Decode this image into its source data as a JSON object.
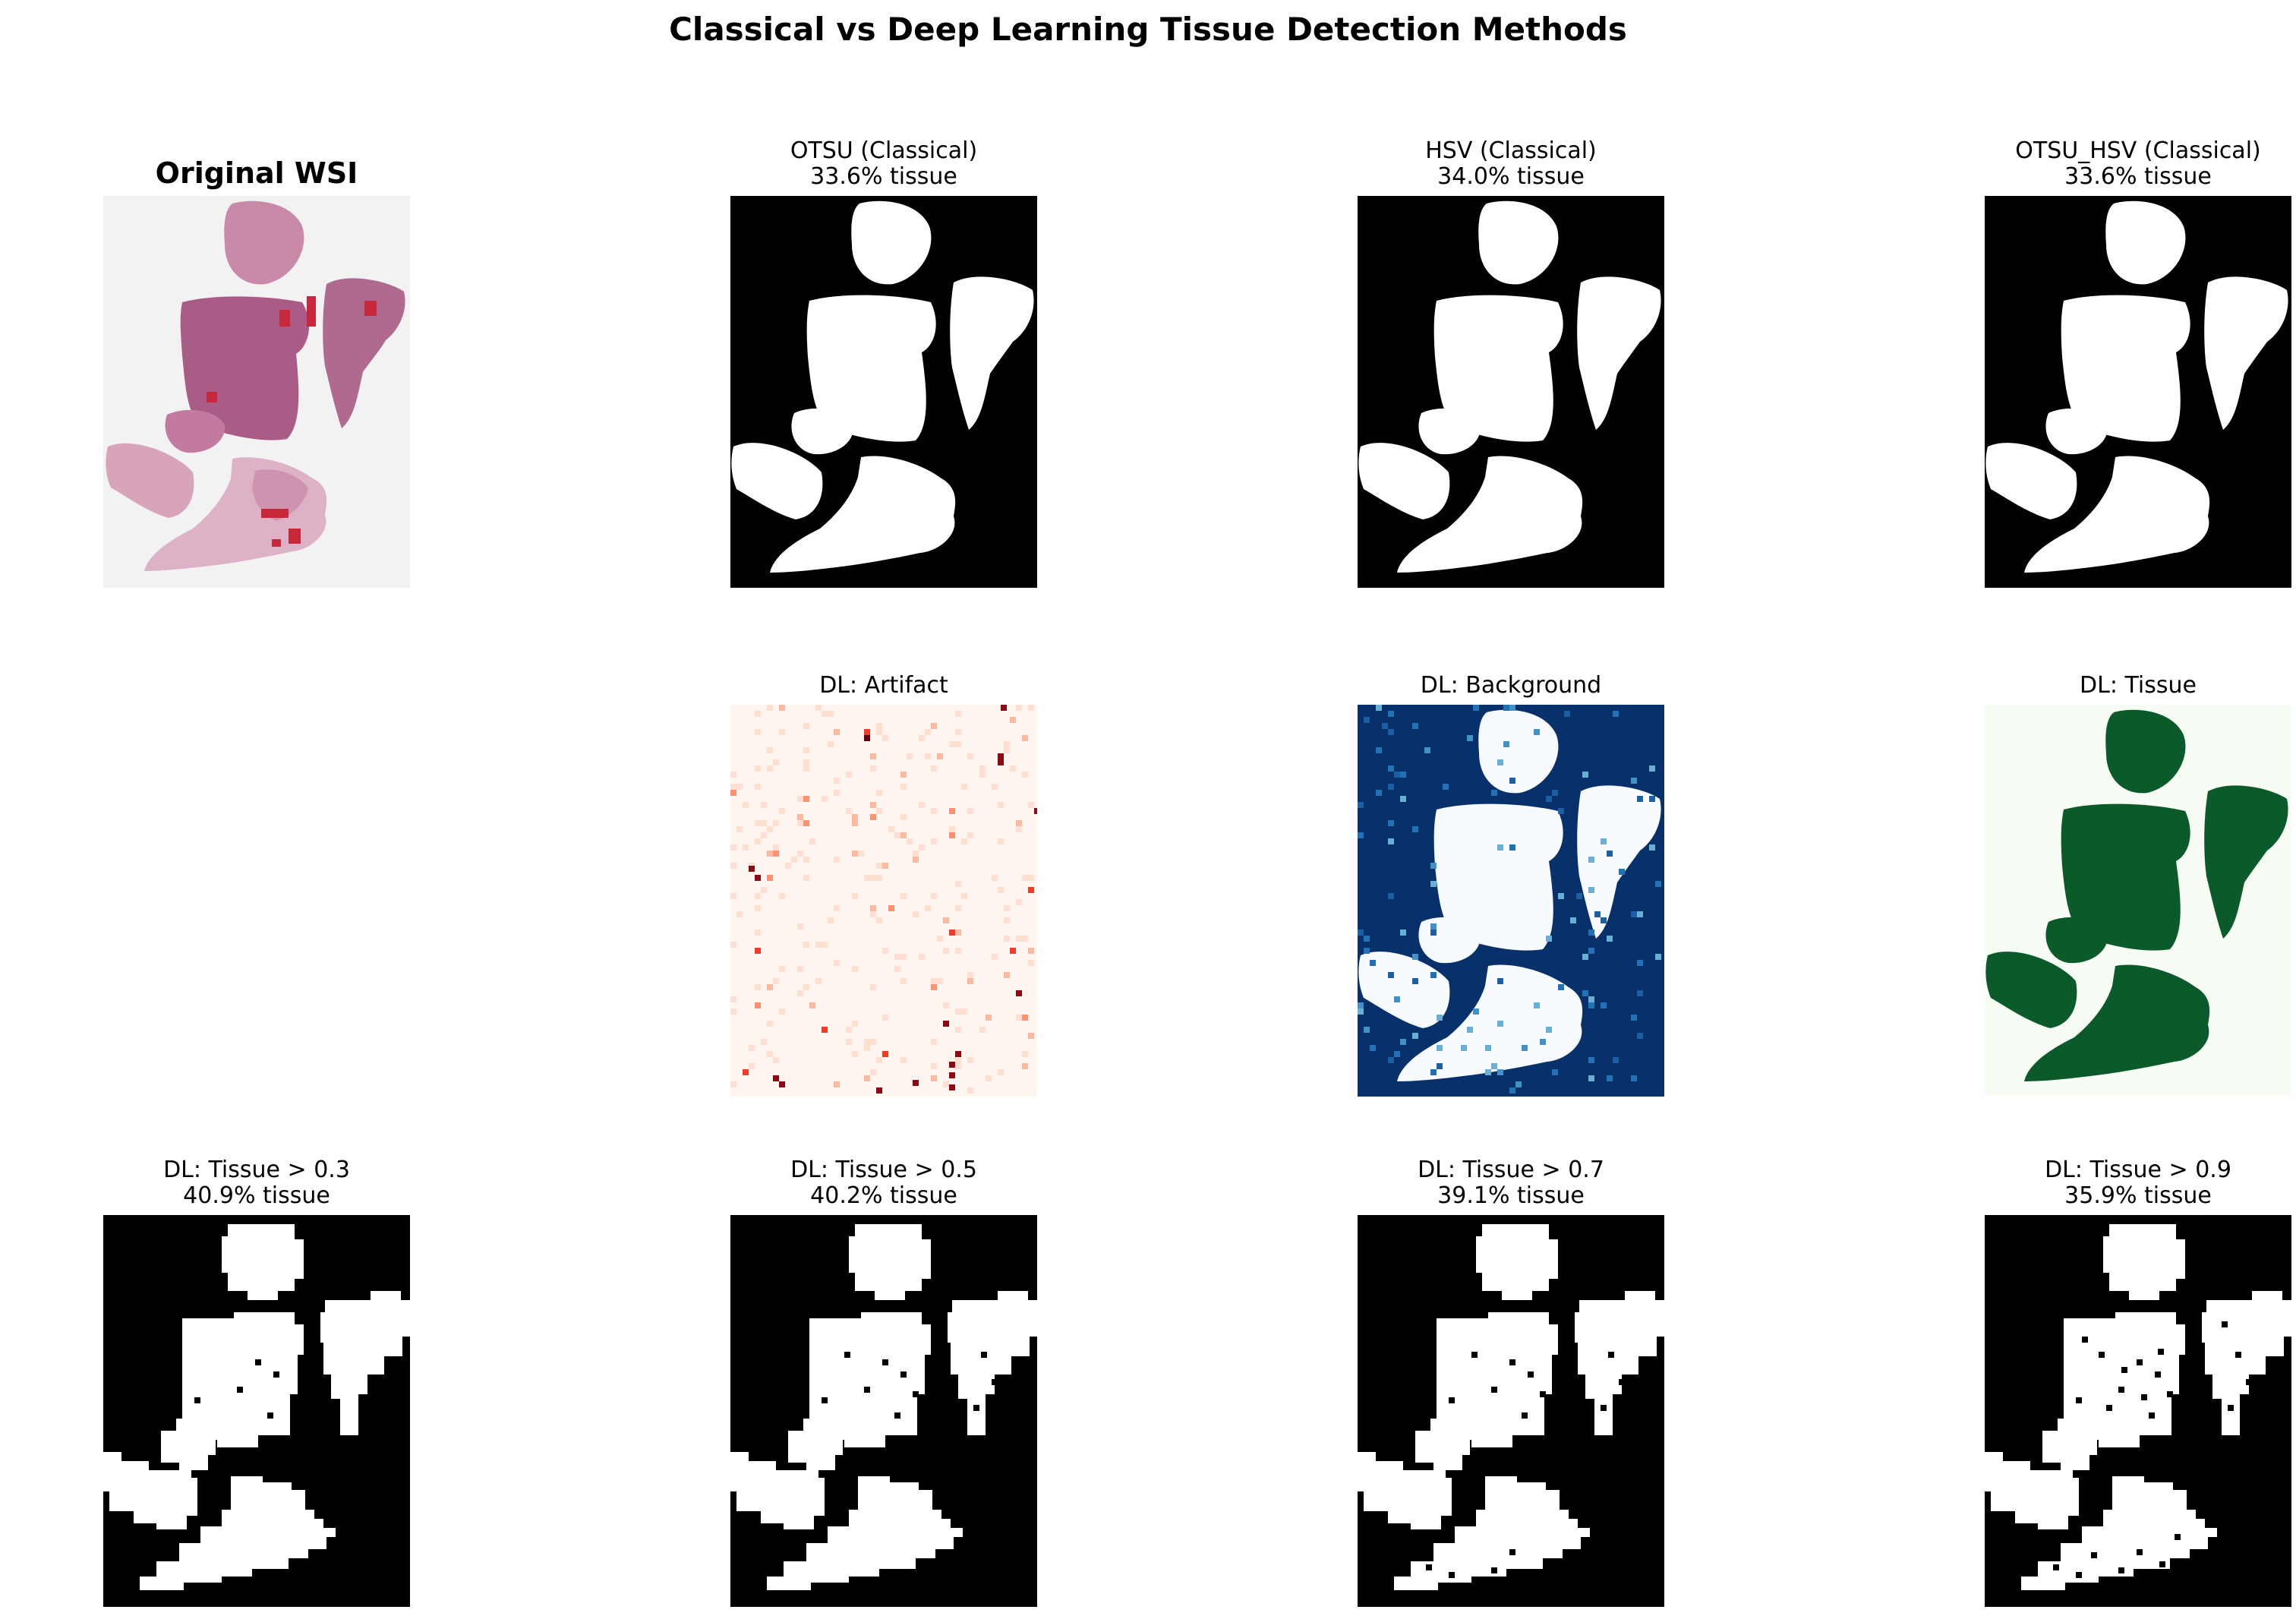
{
  "figure": {
    "title": "Classical vs Deep Learning Tissue Detection Methods"
  },
  "panels": {
    "original": {
      "title": "Original WSI"
    },
    "otsu": {
      "title": "OTSU (Classical)",
      "subtitle": "33.6% tissue"
    },
    "hsv": {
      "title": "HSV (Classical)",
      "subtitle": "34.0% tissue"
    },
    "otsu_hsv": {
      "title": "OTSU_HSV (Classical)",
      "subtitle": "33.6% tissue"
    },
    "artifact": {
      "title": "DL: Artifact",
      "colormap": "Reds"
    },
    "background": {
      "title": "DL: Background",
      "colormap": "Blues"
    },
    "tissue": {
      "title": "DL: Tissue",
      "colormap": "Greens"
    },
    "t03": {
      "title": "DL: Tissue > 0.3",
      "subtitle": "40.9% tissue"
    },
    "t05": {
      "title": "DL: Tissue > 0.5",
      "subtitle": "40.2% tissue"
    },
    "t07": {
      "title": "DL: Tissue > 0.7",
      "subtitle": "39.1% tissue"
    },
    "t09": {
      "title": "DL: Tissue > 0.9",
      "subtitle": "35.9% tissue"
    }
  },
  "colors": {
    "mask_background": "#000000",
    "mask_tissue": "#ffffff",
    "slide_background": "#f2f2f2",
    "stain_pink": "#c98aa8",
    "stain_purple": "#a95d86",
    "blood_red": "#c8283c",
    "reds_low": "#fff5f0",
    "reds_high": "#67000d",
    "blues_low": "#f7fbff",
    "blues_high": "#08306b",
    "greens_low": "#f7fcf5",
    "greens_high": "#00441b"
  }
}
